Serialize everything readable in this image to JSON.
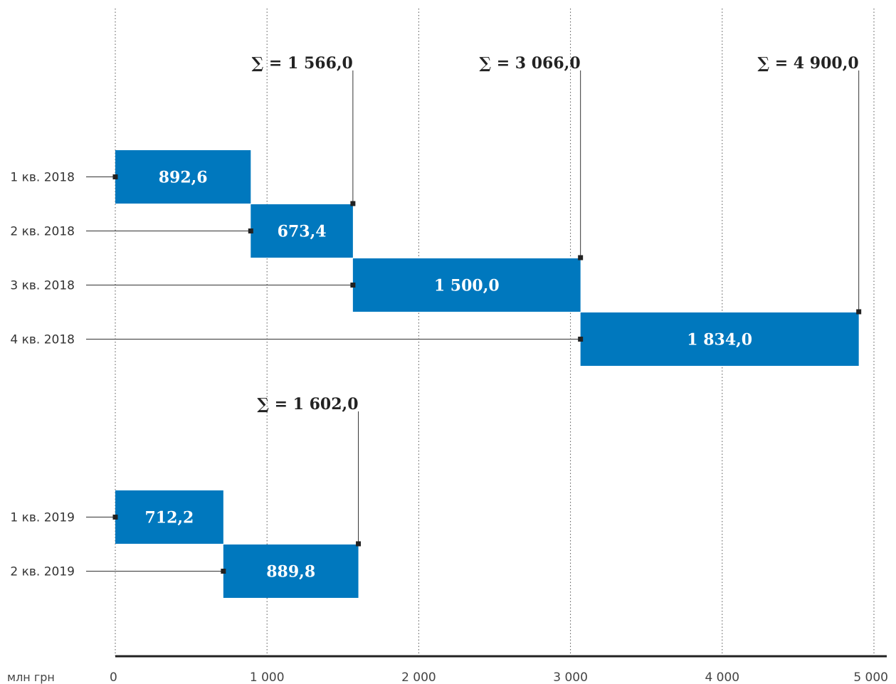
{
  "chart_data": {
    "type": "bar",
    "subtype": "waterfall",
    "unit_label": "млн грн",
    "xlim": [
      0,
      5000
    ],
    "x_ticks": [
      0,
      1000,
      2000,
      3000,
      4000,
      5000
    ],
    "x_tick_labels": [
      "0",
      "1 000",
      "2 000",
      "3 000",
      "4 000",
      "5 000"
    ],
    "grid": "vertical-dotted",
    "bar_color": "#0078BE",
    "groups": [
      {
        "items": [
          {
            "category": "1 кв. 2018",
            "start": 0,
            "value": 892.6,
            "label": "892,6"
          },
          {
            "category": "2 кв. 2018",
            "start": 892.6,
            "value": 673.4,
            "label": "673,4"
          },
          {
            "category": "3 кв. 2018",
            "start": 1566.0,
            "value": 1500.0,
            "label": "1 500,0"
          },
          {
            "category": "4 кв. 2018",
            "start": 3066.0,
            "value": 1834.0,
            "label": "1 834,0"
          }
        ]
      },
      {
        "items": [
          {
            "category": "1 кв. 2019",
            "start": 0,
            "value": 712.2,
            "label": "712,2"
          },
          {
            "category": "2 кв. 2019",
            "start": 712.2,
            "value": 889.8,
            "label": "889,8"
          }
        ]
      }
    ],
    "sum_annotations": [
      {
        "value": 1566.0,
        "label": "∑ = 1 566,0",
        "bar_category": "1 кв. 2018"
      },
      {
        "value": 3066.0,
        "label": "∑ = 3 066,0",
        "bar_category": "2 кв. 2018"
      },
      {
        "value": 4900.0,
        "label": "∑ = 4 900,0",
        "bar_category": "3 кв. 2018"
      },
      {
        "value": 1602.0,
        "label": "∑ = 1 602,0",
        "bar_category": "1 кв. 2019"
      }
    ]
  }
}
